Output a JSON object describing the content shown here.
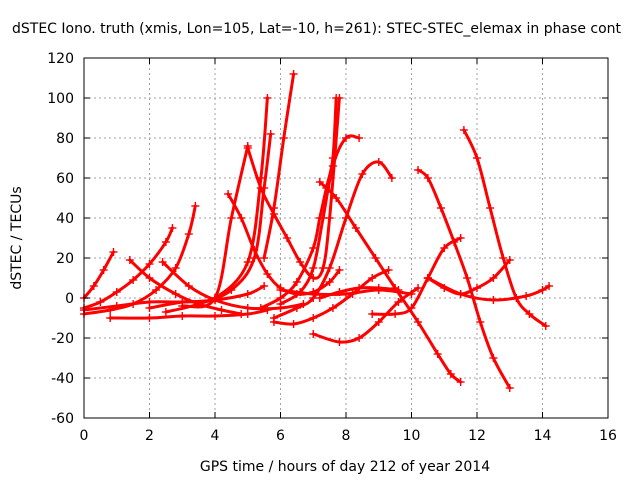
{
  "chart_data": {
    "type": "line",
    "title": "dSTEC Iono. truth (xmis, Lon=105, Lat=-10, h=261): STEC-STEC_elemax in phase cont",
    "xlabel": "GPS time / hours of day 212 of year 2014",
    "ylabel": "dSTEC  / TECUs",
    "xlim": [
      0,
      16
    ],
    "ylim": [
      -60,
      120
    ],
    "xticks": [
      "0",
      "2",
      "4",
      "6",
      "8",
      "10",
      "12",
      "14",
      "16"
    ],
    "yticks": [
      "-60",
      "-40",
      "-20",
      "0",
      "20",
      "40",
      "60",
      "80",
      "100",
      "120"
    ],
    "grid": true,
    "legend": "none",
    "marker": "plus",
    "color": "#ff0000",
    "series": [
      {
        "x": [
          0.0,
          0.3,
          0.6,
          0.9
        ],
        "y": [
          0,
          6,
          14,
          23
        ]
      },
      {
        "x": [
          0.0,
          0.5,
          1.0,
          1.5,
          2.0,
          2.5,
          2.7
        ],
        "y": [
          -5,
          -2,
          3,
          9,
          17,
          28,
          35
        ]
      },
      {
        "x": [
          0.0,
          0.8,
          1.5,
          2.2,
          2.8,
          3.2,
          3.4
        ],
        "y": [
          -8,
          -6,
          -3,
          4,
          15,
          32,
          46
        ]
      },
      {
        "x": [
          1.4,
          2.0,
          2.8,
          3.5,
          4.2,
          4.8
        ],
        "y": [
          19,
          10,
          2,
          -3,
          -6,
          -8
        ]
      },
      {
        "x": [
          0.8,
          2.0,
          3.0,
          4.0,
          5.0,
          5.6
        ],
        "y": [
          -10,
          -10,
          -9,
          -9,
          -8,
          -6
        ]
      },
      {
        "x": [
          2.4,
          3.2,
          4.0,
          5.0,
          6.0,
          6.7
        ],
        "y": [
          18,
          6,
          -1,
          -5,
          -5,
          -3
        ]
      },
      {
        "x": [
          0.0,
          1.0,
          2.0,
          3.0,
          4.0,
          5.0,
          5.5
        ],
        "y": [
          -6,
          -4,
          -2,
          -2,
          -1,
          2,
          6
        ]
      },
      {
        "x": [
          4.4,
          4.8,
          5.2,
          5.6,
          6.0,
          6.5,
          7.0,
          7.5,
          7.8
        ],
        "y": [
          52,
          40,
          24,
          12,
          5,
          2,
          3,
          8,
          14
        ]
      },
      {
        "x": [
          3.0,
          4.0,
          4.5,
          5.0
        ],
        "y": [
          -4,
          0,
          40,
          76
        ]
      },
      {
        "x": [
          2.5,
          3.5,
          4.5,
          5.2,
          5.5,
          5.7
        ],
        "y": [
          -7,
          -3,
          4,
          20,
          55,
          82
        ]
      },
      {
        "x": [
          2.0,
          3.0,
          4.0,
          5.0,
          5.4,
          5.6
        ],
        "y": [
          -5,
          -2,
          0,
          18,
          60,
          100
        ]
      },
      {
        "x": [
          5.5,
          5.8,
          6.1,
          6.4
        ],
        "y": [
          20,
          45,
          80,
          112
        ]
      },
      {
        "x": [
          5.0,
          5.4,
          5.8,
          6.2,
          6.6,
          7.0,
          7.3,
          7.5,
          7.8
        ],
        "y": [
          75,
          55,
          42,
          30,
          18,
          10,
          15,
          40,
          100
        ]
      },
      {
        "x": [
          5.4,
          6.0,
          6.5,
          7.0,
          7.2,
          7.4,
          7.6,
          7.7
        ],
        "y": [
          -5,
          0,
          8,
          25,
          40,
          55,
          70,
          100
        ]
      },
      {
        "x": [
          6.0,
          6.6,
          7.0,
          7.3,
          7.6,
          8.0,
          8.4
        ],
        "y": [
          -3,
          3,
          15,
          40,
          66,
          80,
          80
        ]
      },
      {
        "x": [
          5.8,
          6.5,
          7.0,
          7.5,
          8.0,
          8.5,
          9.0,
          9.4
        ],
        "y": [
          -10,
          -5,
          0,
          15,
          40,
          62,
          68,
          60
        ]
      },
      {
        "x": [
          5.8,
          6.4,
          7.0,
          7.6,
          8.2,
          8.8,
          9.3
        ],
        "y": [
          -12,
          -13,
          -10,
          -5,
          2,
          10,
          14
        ]
      },
      {
        "x": [
          7.2,
          7.8,
          8.4,
          9.0,
          9.6
        ],
        "y": [
          0,
          3,
          5,
          5,
          4
        ]
      },
      {
        "x": [
          6.0,
          7.0,
          8.0,
          9.0,
          10.0
        ],
        "y": [
          4,
          2,
          2,
          4,
          2
        ]
      },
      {
        "x": [
          7.2,
          7.7,
          8.3,
          8.9,
          9.5,
          10.2,
          10.8,
          11.2,
          11.5
        ],
        "y": [
          58,
          50,
          35,
          20,
          5,
          -12,
          -28,
          -38,
          -42
        ]
      },
      {
        "x": [
          7.0,
          7.8,
          8.4,
          9.0,
          9.6,
          10.2
        ],
        "y": [
          -18,
          -22,
          -20,
          -12,
          -2,
          5
        ]
      },
      {
        "x": [
          8.8,
          9.5,
          10.0,
          10.5,
          11.0,
          11.5
        ],
        "y": [
          -8,
          -8,
          -5,
          10,
          25,
          30
        ]
      },
      {
        "x": [
          10.2,
          10.5,
          10.9,
          11.3,
          11.7,
          12.1,
          12.5,
          13.0
        ],
        "y": [
          64,
          60,
          45,
          28,
          10,
          -12,
          -30,
          -45
        ]
      },
      {
        "x": [
          10.5,
          11.0,
          11.5,
          12.0,
          12.5,
          13.0
        ],
        "y": [
          10,
          5,
          2,
          5,
          10,
          19
        ]
      },
      {
        "x": [
          11.6,
          12.0,
          12.4,
          12.8,
          13.2,
          13.6,
          14.1
        ],
        "y": [
          84,
          70,
          45,
          20,
          0,
          -8,
          -14
        ]
      },
      {
        "x": [
          10.5,
          11.5,
          12.5,
          13.5,
          14.0,
          14.2
        ],
        "y": [
          10,
          2,
          -1,
          1,
          4,
          6
        ]
      }
    ]
  }
}
